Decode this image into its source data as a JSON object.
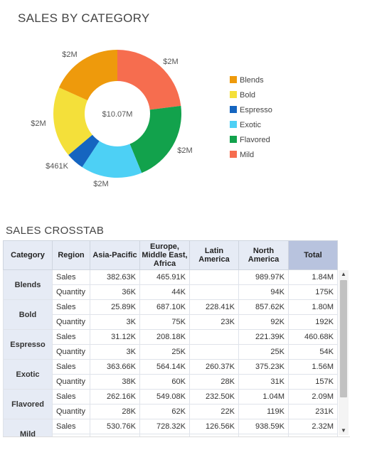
{
  "chart_title": "SALES BY CATEGORY",
  "chart_data": {
    "type": "pie",
    "center_label": "$10.07M",
    "categories": [
      "Blends",
      "Bold",
      "Espresso",
      "Exotic",
      "Flavored",
      "Mild"
    ],
    "values": [
      1.84,
      1.8,
      0.461,
      1.56,
      2.09,
      2.32
    ],
    "data_labels": [
      "$2M",
      "$2M",
      "$461K",
      "$2M",
      "$2M",
      "$2M"
    ],
    "colors": [
      "#ee9a0c",
      "#f4e03a",
      "#1565c0",
      "#4dd0f5",
      "#12a24c",
      "#f66d4f"
    ],
    "legend_position": "right"
  },
  "crosstab": {
    "title": "SALES CROSSTAB",
    "headers": {
      "category": "Category",
      "region": "Region",
      "columns": [
        "Asia-Pacific",
        "Europe, Middle East, Africa",
        "Latin America",
        "North America"
      ],
      "total": "Total"
    },
    "rows": [
      {
        "category": "Blends",
        "sales": [
          "382.63K",
          "465.91K",
          "",
          "989.97K",
          "1.84M"
        ],
        "quantity": [
          "36K",
          "44K",
          "",
          "94K",
          "175K"
        ]
      },
      {
        "category": "Bold",
        "sales": [
          "25.89K",
          "687.10K",
          "228.41K",
          "857.62K",
          "1.80M"
        ],
        "quantity": [
          "3K",
          "75K",
          "23K",
          "92K",
          "192K"
        ]
      },
      {
        "category": "Espresso",
        "sales": [
          "31.12K",
          "208.18K",
          "",
          "221.39K",
          "460.68K"
        ],
        "quantity": [
          "3K",
          "25K",
          "",
          "25K",
          "54K"
        ]
      },
      {
        "category": "Exotic",
        "sales": [
          "363.66K",
          "564.14K",
          "260.37K",
          "375.23K",
          "1.56M"
        ],
        "quantity": [
          "38K",
          "60K",
          "28K",
          "31K",
          "157K"
        ]
      },
      {
        "category": "Flavored",
        "sales": [
          "262.16K",
          "549.08K",
          "232.50K",
          "1.04M",
          "2.09M"
        ],
        "quantity": [
          "28K",
          "62K",
          "22K",
          "119K",
          "231K"
        ]
      },
      {
        "category": "Mild",
        "sales": [
          "530.76K",
          "728.32K",
          "126.56K",
          "938.59K",
          "2.32M"
        ],
        "quantity": [
          "",
          "",
          "",
          "",
          ""
        ]
      }
    ],
    "metric_labels": {
      "sales": "Sales",
      "quantity": "Quantity"
    }
  }
}
